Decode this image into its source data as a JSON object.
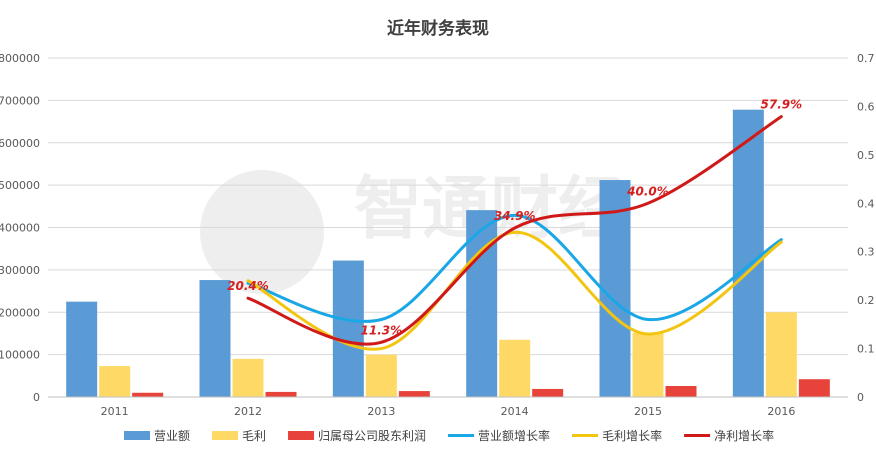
{
  "chart_data": {
    "type": "bar",
    "title": "近年财务表现",
    "categories": [
      "2011",
      "2012",
      "2013",
      "2014",
      "2015",
      "2016"
    ],
    "y_left": {
      "ylim": [
        0,
        800000
      ],
      "ticks": [
        "0",
        "100000",
        "200000",
        "300000",
        "400000",
        "500000",
        "600000",
        "700000",
        "800000"
      ]
    },
    "y_right": {
      "ylim": [
        0,
        0.7
      ],
      "ticks": [
        "0",
        "0.1",
        "0.2",
        "0.3",
        "0.4",
        "0.5",
        "0.6",
        "0.7"
      ]
    },
    "bar_series": [
      {
        "name": "营业额",
        "color": "#5b9bd5",
        "values": [
          225000,
          276000,
          322000,
          441000,
          512000,
          678000
        ]
      },
      {
        "name": "毛利",
        "color": "#ffd966",
        "values": [
          73000,
          90000,
          100000,
          135000,
          152000,
          200000
        ]
      },
      {
        "name": "归属母公司股东利润",
        "color": "#e8433a",
        "values": [
          10000,
          12000,
          14000,
          19000,
          26000,
          42000
        ]
      }
    ],
    "line_series": [
      {
        "name": "营业额增长率",
        "color": "#1aa7e6",
        "axis": "right",
        "values": [
          null,
          0.235,
          0.16,
          0.375,
          0.16,
          0.325
        ]
      },
      {
        "name": "毛利增长率",
        "color": "#f2c511",
        "axis": "right",
        "values": [
          null,
          0.24,
          0.1,
          0.34,
          0.13,
          0.32
        ]
      },
      {
        "name": "净利增长率",
        "color": "#d01a1a",
        "axis": "right",
        "values": [
          null,
          0.204,
          0.113,
          0.349,
          0.4,
          0.579
        ],
        "labels": [
          null,
          "20.4%",
          "11.3%",
          "34.9%",
          "40.0%",
          "57.9%"
        ]
      }
    ],
    "grid": true,
    "legend_position": "bottom",
    "watermark": "智通财经"
  }
}
